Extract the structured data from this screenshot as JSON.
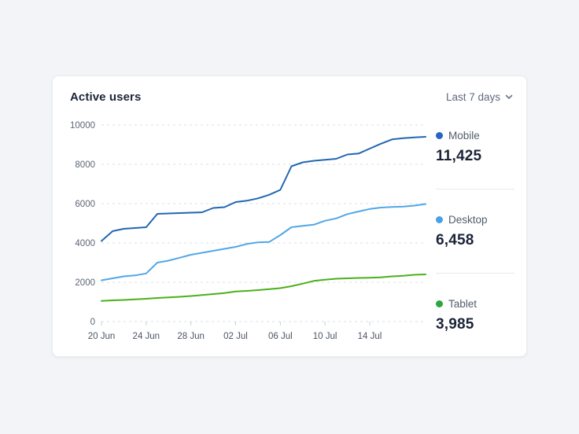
{
  "header": {
    "title": "Active users",
    "range_label": "Last 7 days"
  },
  "colors": {
    "page_bg": "#f2f4f7",
    "card_bg": "#ffffff",
    "card_border": "#e8ebef",
    "grid": "#dbdfe4",
    "tick": "#c9ced6",
    "axis_text_y": "#5c6675",
    "axis_text_x": "#4c5564",
    "title_text": "#1b2437",
    "muted_text": "#5d6a7d"
  },
  "chart_data": {
    "type": "line",
    "title": "Active users",
    "xlabel": "",
    "ylabel": "",
    "ylim": [
      0,
      10000
    ],
    "yticks": [
      0,
      2000,
      4000,
      6000,
      8000,
      10000
    ],
    "grid": "horizontal-dashed",
    "legend_position": "right",
    "n_points": 30,
    "x_tick_labels": [
      "20 Jun",
      "24 Jun",
      "28 Jun",
      "02 Jul",
      "06 Jul",
      "10 Jul",
      "14 Jul"
    ],
    "x_tick_indices": [
      0,
      4,
      8,
      12,
      16,
      20,
      24
    ],
    "series": [
      {
        "name": "Mobile",
        "total": "11,425",
        "color": "#2166b2",
        "dot_color": "#2b63c1",
        "values": [
          4100,
          4600,
          4720,
          4760,
          4800,
          5480,
          5500,
          5520,
          5540,
          5560,
          5780,
          5820,
          6080,
          6150,
          6270,
          6450,
          6700,
          7900,
          8100,
          8180,
          8230,
          8280,
          8500,
          8550,
          8800,
          9050,
          9270,
          9330,
          9370,
          9400
        ]
      },
      {
        "name": "Desktop",
        "total": "6,458",
        "color": "#51a7e6",
        "dot_color": "#46a2e4",
        "values": [
          2100,
          2200,
          2300,
          2350,
          2450,
          3000,
          3100,
          3250,
          3400,
          3500,
          3600,
          3700,
          3800,
          3950,
          4030,
          4050,
          4400,
          4800,
          4870,
          4930,
          5130,
          5250,
          5470,
          5600,
          5730,
          5800,
          5830,
          5850,
          5900,
          5980
        ]
      },
      {
        "name": "Tablet",
        "total": "3,985",
        "color": "#4bb019",
        "dot_color": "#2ba73f",
        "values": [
          1050,
          1080,
          1100,
          1130,
          1160,
          1200,
          1230,
          1260,
          1300,
          1350,
          1400,
          1450,
          1530,
          1560,
          1600,
          1650,
          1700,
          1800,
          1930,
          2070,
          2130,
          2180,
          2200,
          2220,
          2230,
          2250,
          2300,
          2330,
          2380,
          2400
        ]
      }
    ]
  }
}
